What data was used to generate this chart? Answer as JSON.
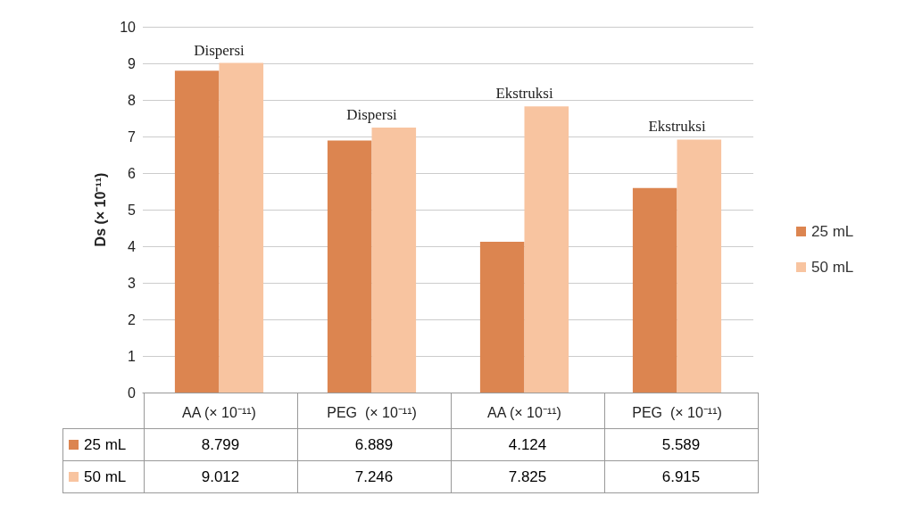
{
  "chart_data": {
    "type": "bar",
    "ylabel": "Ds (× 10⁻¹¹)",
    "categories": [
      "AA (× 10⁻¹¹)",
      "PEG  (× 10⁻¹¹)",
      "AA (× 10⁻¹¹)",
      "PEG  (× 10⁻¹¹)"
    ],
    "series": [
      {
        "name": "25 mL",
        "color": "#dc8550",
        "values": [
          8.799,
          6.889,
          4.124,
          5.589
        ]
      },
      {
        "name": "50 mL",
        "color": "#f8c4a0",
        "values": [
          9.012,
          7.246,
          7.825,
          6.915
        ]
      }
    ],
    "annotations": [
      "Dispersi",
      "Dispersi",
      "Ekstruksi",
      "Ekstruksi"
    ],
    "ylim": [
      0,
      10
    ],
    "yticks": [
      0,
      1,
      2,
      3,
      4,
      5,
      6,
      7,
      8,
      9,
      10
    ],
    "grid": "y",
    "legend": "right",
    "data_labels": true
  }
}
